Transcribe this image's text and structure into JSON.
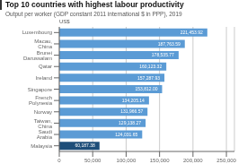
{
  "chart_data": {
    "type": "bar",
    "orientation": "horizontal",
    "title": "Top 10 countries with highest labour productivity",
    "subtitle": "Output per worker (GDP constant 2011 international $ in PPP), 2019",
    "annotation": "US$",
    "categories": [
      "Malaysia",
      "Saudi Arabia",
      "Taiwan, China",
      "Norway",
      "French Polynesia",
      "Singapore",
      "Ireland",
      "Qatar",
      "Brunei Darussalam",
      "Macau, China",
      "Luxembourg"
    ],
    "values": [
      60187.38,
      124031.65,
      129138.27,
      131966.57,
      134205.14,
      153812.0,
      157287.93,
      160123.32,
      178535.77,
      187763.59,
      221453.92
    ],
    "value_labels": [
      "60,187.38",
      "124,031.65",
      "129,138.27",
      "131,966.57",
      "134,205.14",
      "153,812.00",
      "157,287.93",
      "160,123.32",
      "178,535.77",
      "187,763.59",
      "221,453.92"
    ],
    "data_labels": true,
    "colors": [
      "#1e4e79",
      "#5b9bd5",
      "#5b9bd5",
      "#5b9bd5",
      "#5b9bd5",
      "#5b9bd5",
      "#5b9bd5",
      "#5b9bd5",
      "#5b9bd5",
      "#5b9bd5",
      "#5b9bd5"
    ],
    "xlim": [
      0,
      262000
    ],
    "xticks": [
      0,
      {
        "value": 50000,
        "label": "50,000"
      },
      {
        "value": 100000,
        "label": "100,000"
      },
      {
        "value": 150000,
        "label": "150,000"
      },
      {
        "value": 200000,
        "label": "200,000"
      },
      {
        "value": 250000,
        "label": "250,000"
      }
    ],
    "grid": true
  }
}
